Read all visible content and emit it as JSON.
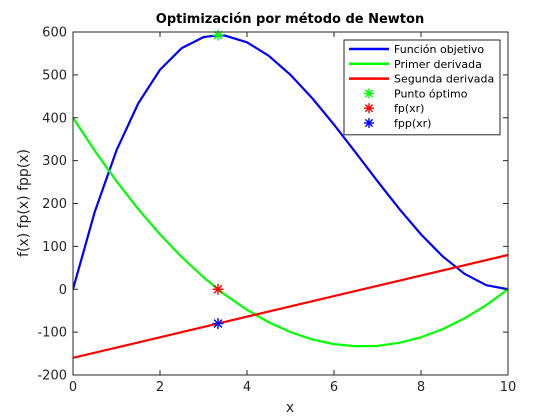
{
  "chart_data": {
    "type": "line",
    "title": "Optimización por método de Newton",
    "xlabel": "x",
    "ylabel": "f(x) fp(x) fpp(x)",
    "xlim": [
      0,
      10
    ],
    "ylim": [
      -200,
      600
    ],
    "xticks": [
      0,
      2,
      4,
      6,
      8,
      10
    ],
    "yticks": [
      -200,
      -100,
      0,
      100,
      200,
      300,
      400,
      500,
      600
    ],
    "grid": false,
    "legend_position": "top-right",
    "series": [
      {
        "name": "Función objetivo",
        "color": "#0000ff",
        "x": [
          0,
          0.5,
          1,
          1.5,
          2,
          2.5,
          3,
          3.333,
          3.5,
          4,
          4.5,
          5,
          5.5,
          6,
          6.5,
          7,
          7.5,
          8,
          8.5,
          9,
          9.5,
          10
        ],
        "y": [
          0,
          180.5,
          324,
          433.5,
          512,
          562.5,
          588,
          592.6,
          591.5,
          576,
          544.5,
          500,
          445.5,
          384,
          318.5,
          252,
          187.5,
          128,
          76.5,
          36,
          9.5,
          0
        ]
      },
      {
        "name": "Primer derivada",
        "color": "#00ff00",
        "x": [
          0,
          0.5,
          1,
          1.5,
          2,
          2.5,
          3,
          3.333,
          3.5,
          4,
          4.5,
          5,
          5.5,
          6,
          6.5,
          7,
          7.5,
          8,
          8.5,
          9,
          9.5,
          10
        ],
        "y": [
          400,
          323,
          252,
          187,
          128,
          75,
          28,
          0,
          -13,
          -48,
          -77,
          -100,
          -117,
          -128,
          -133,
          -132,
          -125,
          -112,
          -93,
          -68,
          -37,
          0
        ]
      },
      {
        "name": "Segunda derivada",
        "color": "#ff0000",
        "x": [
          0,
          10
        ],
        "y": [
          -160,
          80
        ]
      }
    ],
    "markers": [
      {
        "name": "Punto óptimo",
        "color": "#00ff00",
        "x": 3.333,
        "y": 592.6
      },
      {
        "name": "fp(xr)",
        "color": "#ff0000",
        "x": 3.333,
        "y": 0
      },
      {
        "name": "fpp(xr)",
        "color": "#0000ff",
        "x": 3.333,
        "y": -80
      }
    ]
  }
}
